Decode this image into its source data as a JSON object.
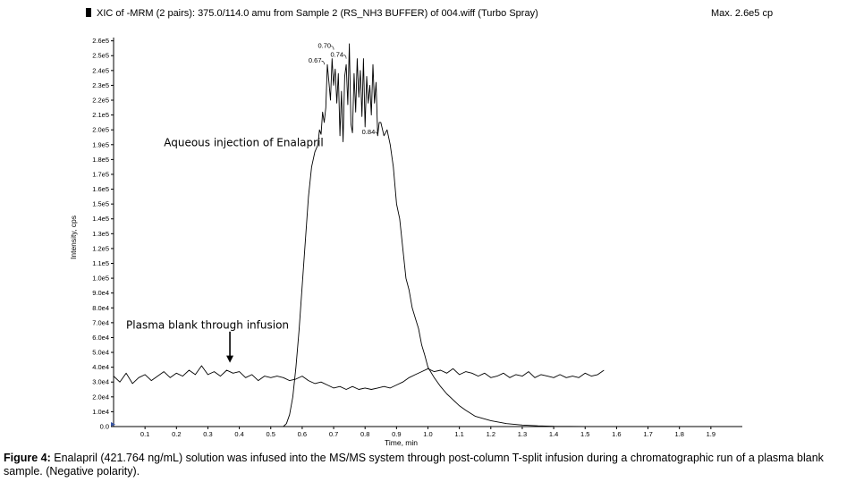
{
  "header": {
    "title": "XIC of -MRM (2 pairs): 375.0/114.0 amu from Sample 2 (RS_NH3 BUFFER) of 004.wiff (Turbo Spray)",
    "max": "Max. 2.6e5 cp"
  },
  "caption": {
    "label": "Figure 4:",
    "text": " Enalapril (421.764 ng/mL) solution was infused into the MS/MS system through post-column T-split infusion during a chromatographic run of a plasma blank sample. (Negative polarity)."
  },
  "chart_data": {
    "type": "line",
    "xlabel": "Time, min",
    "ylabel": "Intensity, cps",
    "xlim": [
      0.0,
      2.0
    ],
    "ylim": [
      0,
      261000
    ],
    "x_ticks": [
      0.1,
      0.2,
      0.3,
      0.4,
      0.5,
      0.6,
      0.7,
      0.8,
      0.9,
      1.0,
      1.1,
      1.2,
      1.3,
      1.4,
      1.5,
      1.6,
      1.7,
      1.8,
      1.9
    ],
    "x_tick_labels": [
      "0.1",
      "0.2",
      "0.3",
      "0.4",
      "0.5",
      "0.6",
      "0.7",
      "0.8",
      "0.9",
      "1.0",
      "1.1",
      "1.2",
      "1.3",
      "1.4",
      "1.5",
      "1.6",
      "1.7",
      "1.8",
      "1.9"
    ],
    "y_ticks": [
      0,
      10000,
      20000,
      30000,
      40000,
      50000,
      60000,
      70000,
      80000,
      90000,
      100000,
      110000,
      120000,
      130000,
      140000,
      150000,
      160000,
      170000,
      180000,
      190000,
      200000,
      210000,
      220000,
      230000,
      240000,
      250000,
      260000
    ],
    "y_tick_labels": [
      "0.0",
      "1.0e4",
      "2.0e4",
      "3.0e4",
      "4.0e4",
      "5.0e4",
      "6.0e4",
      "7.0e4",
      "8.0e4",
      "9.0e4",
      "1.0e5",
      "1.1e5",
      "1.2e5",
      "1.3e5",
      "1.4e5",
      "1.5e5",
      "1.6e5",
      "1.7e5",
      "1.8e5",
      "1.9e5",
      "2.0e5",
      "2.1e5",
      "2.2e5",
      "2.3e5",
      "2.4e5",
      "2.5e5",
      "2.6e5"
    ],
    "series": [
      {
        "name": "Aqueous injection of Enalapril",
        "x": [
          0.54,
          0.55,
          0.56,
          0.57,
          0.58,
          0.59,
          0.6,
          0.61,
          0.62,
          0.63,
          0.64,
          0.65,
          0.655,
          0.66,
          0.665,
          0.67,
          0.675,
          0.68,
          0.685,
          0.69,
          0.695,
          0.7,
          0.705,
          0.71,
          0.715,
          0.72,
          0.725,
          0.73,
          0.735,
          0.74,
          0.745,
          0.75,
          0.755,
          0.76,
          0.765,
          0.77,
          0.775,
          0.78,
          0.785,
          0.79,
          0.795,
          0.8,
          0.805,
          0.81,
          0.815,
          0.82,
          0.825,
          0.83,
          0.835,
          0.84,
          0.845,
          0.85,
          0.86,
          0.87,
          0.88,
          0.89,
          0.9,
          0.91,
          0.92,
          0.93,
          0.94,
          0.95,
          0.96,
          0.97,
          0.98,
          0.99,
          1.0,
          1.02,
          1.04,
          1.06,
          1.08,
          1.1,
          1.12,
          1.15,
          1.2,
          1.25,
          1.3,
          1.35,
          1.4,
          1.45,
          1.5,
          1.55,
          1.6,
          1.7,
          1.8,
          1.9
        ],
        "y": [
          0,
          2000,
          8000,
          20000,
          40000,
          65000,
          95000,
          125000,
          155000,
          175000,
          185000,
          190000,
          200000,
          197000,
          212000,
          205000,
          215000,
          244000,
          232000,
          220000,
          248000,
          230000,
          241000,
          218000,
          238000,
          196000,
          226000,
          192000,
          236000,
          244000,
          217000,
          258000,
          204000,
          198000,
          238000,
          212000,
          248000,
          222000,
          240000,
          209000,
          248000,
          202000,
          236000,
          218000,
          230000,
          210000,
          244000,
          218000,
          232000,
          196000,
          205000,
          205000,
          196000,
          200000,
          190000,
          175000,
          150000,
          140000,
          120000,
          100000,
          92000,
          80000,
          73000,
          66000,
          55000,
          48000,
          40000,
          33000,
          27000,
          22000,
          18000,
          14000,
          11000,
          7000,
          4000,
          2000,
          1000,
          500,
          200,
          100,
          50,
          0,
          0,
          0,
          0,
          0
        ]
      },
      {
        "name": "Plasma blank through infusion",
        "x": [
          0.0,
          0.02,
          0.04,
          0.06,
          0.08,
          0.1,
          0.12,
          0.14,
          0.16,
          0.18,
          0.2,
          0.22,
          0.24,
          0.26,
          0.28,
          0.3,
          0.32,
          0.34,
          0.36,
          0.38,
          0.4,
          0.42,
          0.44,
          0.46,
          0.48,
          0.5,
          0.52,
          0.54,
          0.56,
          0.58,
          0.6,
          0.62,
          0.64,
          0.66,
          0.68,
          0.7,
          0.72,
          0.74,
          0.76,
          0.78,
          0.8,
          0.82,
          0.84,
          0.86,
          0.88,
          0.9,
          0.92,
          0.94,
          0.96,
          0.98,
          1.0,
          1.02,
          1.04,
          1.06,
          1.08,
          1.1,
          1.12,
          1.14,
          1.16,
          1.18,
          1.2,
          1.22,
          1.24,
          1.26,
          1.28,
          1.3,
          1.32,
          1.34,
          1.36,
          1.38,
          1.4,
          1.42,
          1.44,
          1.46,
          1.48,
          1.5,
          1.52,
          1.54,
          1.56
        ],
        "y": [
          34000,
          30000,
          36000,
          29000,
          33000,
          35000,
          31000,
          34000,
          37000,
          33000,
          36000,
          34000,
          38000,
          35000,
          41000,
          35000,
          37000,
          34000,
          38000,
          36000,
          37000,
          33000,
          35000,
          31000,
          34000,
          33000,
          34000,
          33000,
          31000,
          32000,
          34000,
          31000,
          29000,
          30000,
          28000,
          26000,
          27000,
          25000,
          27000,
          25000,
          26000,
          25000,
          26000,
          27000,
          26000,
          28000,
          30000,
          33000,
          35000,
          37000,
          39000,
          37000,
          38000,
          36000,
          39000,
          35000,
          37000,
          36000,
          34000,
          36000,
          33000,
          34000,
          36000,
          33000,
          35000,
          34000,
          37000,
          33000,
          35000,
          34000,
          33000,
          35000,
          33000,
          34000,
          33000,
          36000,
          34000,
          35000,
          38000
        ]
      }
    ],
    "peak_labels": [
      {
        "text": "0.67",
        "x": 0.67,
        "y": 244000
      },
      {
        "text": "0.70",
        "x": 0.7,
        "y": 254000
      },
      {
        "text": "0.74",
        "x": 0.74,
        "y": 248000
      },
      {
        "text": "0.84",
        "x": 0.84,
        "y": 196000
      }
    ],
    "annotations": [
      {
        "text": "Aqueous injection of Enalapril",
        "x": 0.16,
        "y": 189000
      },
      {
        "text": "Plasma blank through infusion",
        "x": 0.04,
        "y": 66000
      }
    ],
    "arrow": {
      "x": 0.37,
      "y_from": 64000,
      "y_to": 43000
    }
  }
}
